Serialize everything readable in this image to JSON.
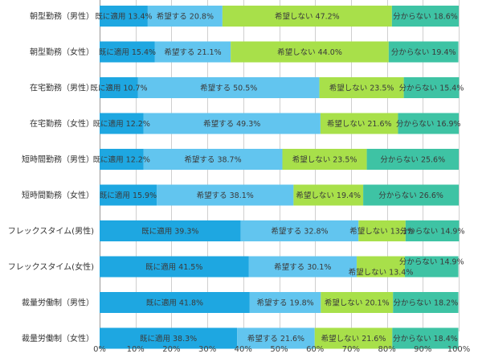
{
  "chart_data": {
    "type": "bar",
    "orientation": "horizontal",
    "stacked": true,
    "categories": [
      "朝型勤務（男性）",
      "朝型勤務（女性）",
      "在宅勤務（男性）",
      "在宅勤務（女性）",
      "短時間勤務（男性）",
      "短時間勤務（女性）",
      "フレックスタイム(男性)",
      "フレックスタイム(女性)",
      "裁量労働制（男性）",
      "裁量労働制（女性）"
    ],
    "series": [
      {
        "name": "既に適用",
        "color": "#1ea7e1",
        "values": [
          13.4,
          15.4,
          10.7,
          12.2,
          12.2,
          15.9,
          39.3,
          41.5,
          41.8,
          38.3
        ]
      },
      {
        "name": "希望する",
        "color": "#62c5ef",
        "values": [
          20.8,
          21.1,
          50.5,
          49.3,
          38.7,
          38.1,
          32.8,
          30.1,
          19.8,
          21.6
        ]
      },
      {
        "name": "希望しない",
        "color": "#a8e04a",
        "values": [
          47.2,
          44.0,
          23.5,
          21.6,
          23.5,
          19.4,
          13.1,
          13.4,
          20.1,
          21.6
        ]
      },
      {
        "name": "分からない",
        "color": "#3ec3a4",
        "values": [
          18.6,
          19.4,
          15.4,
          16.9,
          25.6,
          26.6,
          14.9,
          14.9,
          18.2,
          18.4
        ]
      }
    ],
    "label_texts": [
      [
        "既に適用 13.4%",
        "希望する 20.8%",
        "希望しない 47.2%",
        "分からない 18.6%"
      ],
      [
        "既に適用 15.4%",
        "希望する 21.1%",
        "希望しない 44.0%",
        "分からない 19.4%"
      ],
      [
        "既に適用 10.7%",
        "希望する 50.5%",
        "希望しない 23.5%",
        "分からない 15.4%"
      ],
      [
        "既に適用 12.2%",
        "希望する 49.3%",
        "希望しない 21.6%",
        "分からない 16.9%"
      ],
      [
        "既に適用 12.2%",
        "希望する 38.7%",
        "希望しない 23.5%",
        "分からない 25.6%"
      ],
      [
        "既に適用 15.9%",
        "希望する 38.1%",
        "希望しない 19.4%",
        "分からない 26.6%"
      ],
      [
        "既に適用 39.3%",
        "希望する 32.8%",
        "希望しない 13.1%",
        "分からない 14.9%"
      ],
      [
        "既に適用 41.5%",
        "希望する 30.1%",
        "希望しない 13.4%",
        "分からない 14.9%"
      ],
      [
        "既に適用 41.8%",
        "希望する 19.8%",
        "希望しない 20.1%",
        "分からない 18.2%"
      ],
      [
        "既に適用 38.3%",
        "希望する 21.6%",
        "希望しない 21.6%",
        "分からない 18.4%"
      ]
    ],
    "xlim": [
      0,
      100
    ],
    "x_ticks": [
      "0%",
      "10%",
      "20%",
      "30%",
      "40%",
      "50%",
      "60%",
      "70%",
      "80%",
      "90%",
      "100%"
    ],
    "grid": true,
    "legend": "none",
    "title": "",
    "xlabel": "",
    "ylabel": ""
  }
}
